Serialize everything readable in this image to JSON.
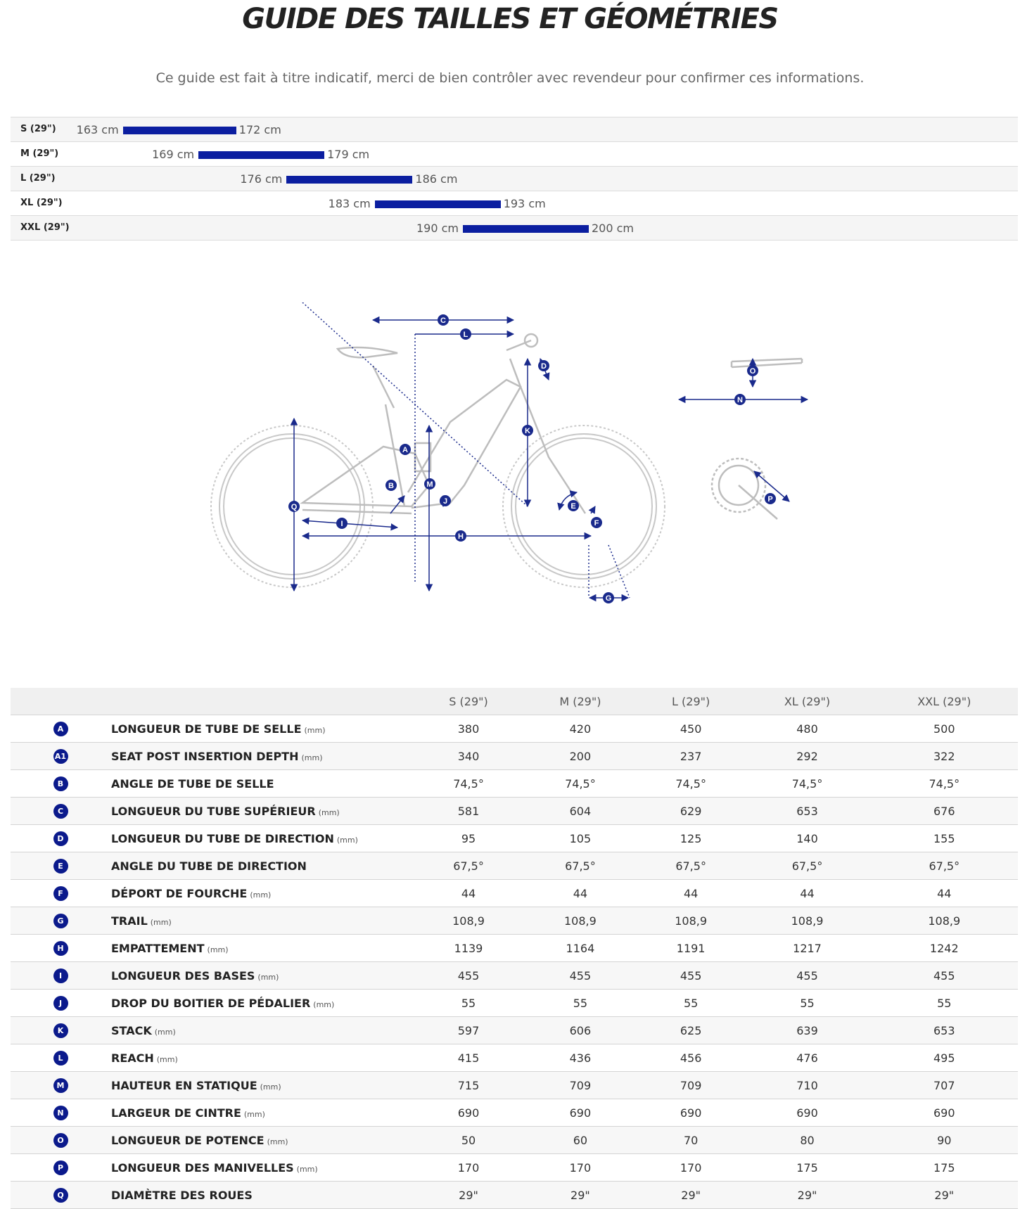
{
  "title": "GUIDE DES TAILLES ET GÉOMÉTRIES",
  "subtitle": "Ce guide est fait à titre indicatif, merci de bien contrôler avec revendeur pour confirmer ces informations.",
  "colors": {
    "accent": "#0b1ea0",
    "badge": "#0b1a8c"
  },
  "size_chart": {
    "unit": "cm",
    "range_cm": [
      150,
      200
    ],
    "sizes": [
      {
        "name": "S (29\")",
        "min": "163 cm",
        "max": "172 cm",
        "min_cm": 163,
        "max_cm": 172
      },
      {
        "name": "M (29\")",
        "min": "169 cm",
        "max": "179 cm",
        "min_cm": 169,
        "max_cm": 179
      },
      {
        "name": "L (29\")",
        "min": "176 cm",
        "max": "186 cm",
        "min_cm": 176,
        "max_cm": 186
      },
      {
        "name": "XL (29\")",
        "min": "183 cm",
        "max": "193 cm",
        "min_cm": 183,
        "max_cm": 193
      },
      {
        "name": "XXL (29\")",
        "min": "190 cm",
        "max": "200 cm",
        "min_cm": 190,
        "max_cm": 200
      }
    ]
  },
  "diagram": {
    "labels": [
      "A",
      "B",
      "C",
      "D",
      "E",
      "F",
      "G",
      "H",
      "I",
      "J",
      "K",
      "L",
      "M",
      "N",
      "O",
      "P",
      "Q"
    ]
  },
  "geometry": {
    "columns": [
      "S (29\")",
      "M (29\")",
      "L (29\")",
      "XL (29\")",
      "XXL (29\")"
    ],
    "rows": [
      {
        "code": "A",
        "label": "LONGUEUR DE TUBE DE SELLE",
        "unit": "(mm)",
        "values": [
          "380",
          "420",
          "450",
          "480",
          "500"
        ]
      },
      {
        "code": "A1",
        "label": "SEAT POST INSERTION DEPTH",
        "unit": "(mm)",
        "values": [
          "340",
          "200",
          "237",
          "292",
          "322"
        ]
      },
      {
        "code": "B",
        "label": "ANGLE DE TUBE DE SELLE",
        "unit": "",
        "values": [
          "74,5°",
          "74,5°",
          "74,5°",
          "74,5°",
          "74,5°"
        ]
      },
      {
        "code": "C",
        "label": "LONGUEUR DU TUBE SUPÉRIEUR",
        "unit": "(mm)",
        "values": [
          "581",
          "604",
          "629",
          "653",
          "676"
        ]
      },
      {
        "code": "D",
        "label": "LONGUEUR DU TUBE DE DIRECTION",
        "unit": "(mm)",
        "values": [
          "95",
          "105",
          "125",
          "140",
          "155"
        ]
      },
      {
        "code": "E",
        "label": "ANGLE DU TUBE DE DIRECTION",
        "unit": "",
        "values": [
          "67,5°",
          "67,5°",
          "67,5°",
          "67,5°",
          "67,5°"
        ]
      },
      {
        "code": "F",
        "label": "DÉPORT DE FOURCHE",
        "unit": "(mm)",
        "values": [
          "44",
          "44",
          "44",
          "44",
          "44"
        ]
      },
      {
        "code": "G",
        "label": "TRAIL",
        "unit": "(mm)",
        "values": [
          "108,9",
          "108,9",
          "108,9",
          "108,9",
          "108,9"
        ]
      },
      {
        "code": "H",
        "label": "EMPATTEMENT",
        "unit": "(mm)",
        "values": [
          "1139",
          "1164",
          "1191",
          "1217",
          "1242"
        ]
      },
      {
        "code": "I",
        "label": "LONGUEUR DES BASES",
        "unit": "(mm)",
        "values": [
          "455",
          "455",
          "455",
          "455",
          "455"
        ]
      },
      {
        "code": "J",
        "label": "DROP DU BOITIER DE PÉDALIER",
        "unit": "(mm)",
        "values": [
          "55",
          "55",
          "55",
          "55",
          "55"
        ]
      },
      {
        "code": "K",
        "label": "STACK",
        "unit": "(mm)",
        "values": [
          "597",
          "606",
          "625",
          "639",
          "653"
        ]
      },
      {
        "code": "L",
        "label": "REACH",
        "unit": "(mm)",
        "values": [
          "415",
          "436",
          "456",
          "476",
          "495"
        ]
      },
      {
        "code": "M",
        "label": "HAUTEUR EN STATIQUE",
        "unit": "(mm)",
        "values": [
          "715",
          "709",
          "709",
          "710",
          "707"
        ]
      },
      {
        "code": "N",
        "label": "LARGEUR DE CINTRE",
        "unit": "(mm)",
        "values": [
          "690",
          "690",
          "690",
          "690",
          "690"
        ]
      },
      {
        "code": "O",
        "label": "LONGUEUR DE POTENCE",
        "unit": "(mm)",
        "values": [
          "50",
          "60",
          "70",
          "80",
          "90"
        ]
      },
      {
        "code": "P",
        "label": "LONGUEUR DES MANIVELLES",
        "unit": "(mm)",
        "values": [
          "170",
          "170",
          "170",
          "175",
          "175"
        ]
      },
      {
        "code": "Q",
        "label": "DIAMÈTRE DES ROUES",
        "unit": "",
        "values": [
          "29\"",
          "29\"",
          "29\"",
          "29\"",
          "29\""
        ]
      }
    ]
  }
}
